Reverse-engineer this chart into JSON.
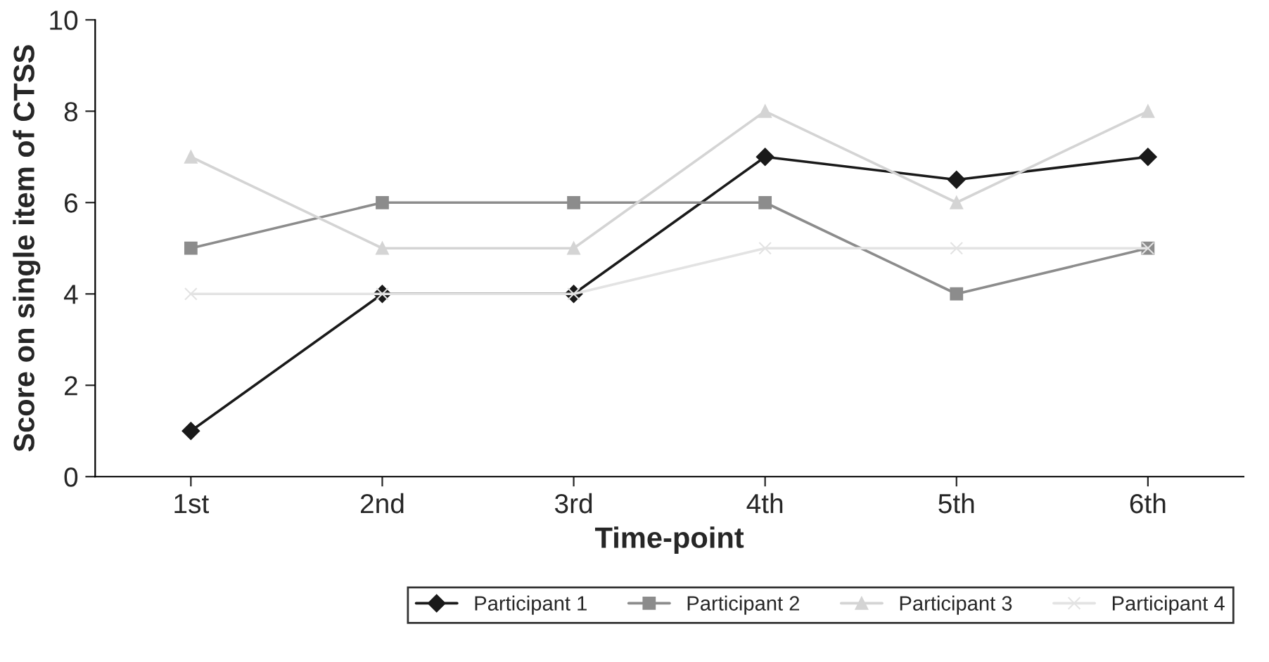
{
  "chart_data": {
    "type": "line",
    "xlabel": "Time-point",
    "ylabel": "Score on single item of CTSS",
    "categories": [
      "1st",
      "2nd",
      "3rd",
      "4th",
      "5th",
      "6th"
    ],
    "series": [
      {
        "name": "Participant 1",
        "color": "#1a1a1a",
        "marker": "diamond",
        "values": [
          1,
          4,
          4,
          7,
          6.5,
          7
        ]
      },
      {
        "name": "Participant 2",
        "color": "#8c8c8c",
        "marker": "square",
        "values": [
          5,
          6,
          6,
          6,
          4,
          5
        ]
      },
      {
        "name": "Participant 3",
        "color": "#d4d4d4",
        "marker": "triangle",
        "values": [
          7,
          5,
          5,
          8,
          6,
          8
        ]
      },
      {
        "name": "Participant 4",
        "color": "#e3e3e3",
        "marker": "cross",
        "values": [
          4,
          4,
          4,
          5,
          5,
          5
        ]
      }
    ],
    "ylim": [
      0,
      10
    ],
    "yticks": [
      0,
      2,
      4,
      6,
      8,
      10
    ],
    "grid": false,
    "legend": "bottom",
    "line_style": "solid"
  }
}
